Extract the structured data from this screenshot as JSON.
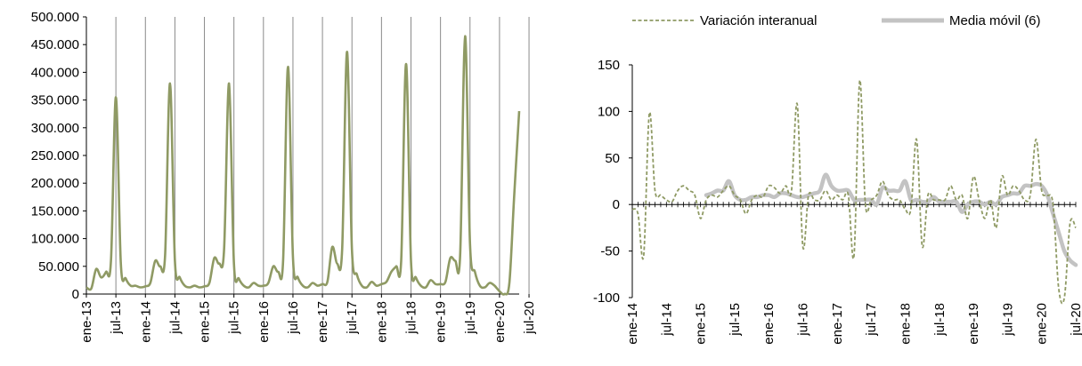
{
  "chart_data": [
    {
      "type": "line",
      "title": "",
      "xlabel": "",
      "ylabel": "",
      "ylim": [
        0,
        500000
      ],
      "yticks": [
        0,
        50000,
        100000,
        150000,
        200000,
        250000,
        300000,
        350000,
        400000,
        450000,
        500000
      ],
      "ytick_labels": [
        "0",
        "50.000",
        "100.000",
        "150.000",
        "200.000",
        "250.000",
        "300.000",
        "350.000",
        "400.000",
        "450.000",
        "500.000"
      ],
      "xtick_labels": [
        "ene-13",
        "jul-13",
        "ene-14",
        "jul-14",
        "ene-15",
        "jul-15",
        "ene-16",
        "jul-16",
        "ene-17",
        "jul-17",
        "ene-18",
        "jul-18",
        "ene-19",
        "jul-19",
        "ene-20",
        "jul-20"
      ],
      "x_start": "ene-13",
      "x_end": "ago-20",
      "grid": "vertical lines at each ene/jul",
      "series": [
        {
          "name": "",
          "color": "#8f9a64",
          "values": [
            12000,
            10000,
            45000,
            30000,
            40000,
            60000,
            355000,
            55000,
            28000,
            15000,
            15000,
            12000,
            14000,
            20000,
            60000,
            50000,
            70000,
            380000,
            60000,
            30000,
            15000,
            12000,
            15000,
            12000,
            14000,
            20000,
            65000,
            55000,
            80000,
            380000,
            55000,
            28000,
            15000,
            12000,
            20000,
            15000,
            15000,
            20000,
            50000,
            40000,
            60000,
            410000,
            65000,
            30000,
            15000,
            12000,
            20000,
            15000,
            18000,
            22000,
            85000,
            55000,
            80000,
            437000,
            80000,
            35000,
            15000,
            12000,
            22000,
            15000,
            18000,
            22000,
            40000,
            50000,
            60000,
            415000,
            60000,
            30000,
            15000,
            12000,
            25000,
            18000,
            18000,
            22000,
            65000,
            60000,
            70000,
            465000,
            90000,
            40000,
            15000,
            12000,
            20000,
            15000,
            5000,
            0,
            20000,
            180000,
            330000
          ]
        }
      ]
    },
    {
      "type": "line",
      "title": "",
      "xlabel": "",
      "ylabel": "",
      "ylim": [
        -100,
        150
      ],
      "yticks": [
        -100,
        -50,
        0,
        50,
        100,
        150
      ],
      "ytick_labels": [
        "-100",
        "-50",
        "0",
        "50",
        "100",
        "150"
      ],
      "xtick_labels": [
        "ene-14",
        "jul-14",
        "ene-15",
        "jul-15",
        "ene-16",
        "jul-16",
        "ene-17",
        "jul-17",
        "ene-18",
        "jul-18",
        "ene-19",
        "jul-19",
        "ene-20",
        "jul-20"
      ],
      "x_start": "ene-14",
      "x_end": "ago-20",
      "legend_position": "top",
      "series": [
        {
          "name": "Variación interanual",
          "color": "#8f9a64",
          "style": "dashed",
          "values": [
            -5,
            -10,
            -55,
            98,
            15,
            10,
            5,
            3,
            15,
            20,
            15,
            10,
            -15,
            5,
            10,
            8,
            15,
            20,
            10,
            5,
            -10,
            5,
            10,
            8,
            20,
            18,
            12,
            20,
            15,
            108,
            -45,
            10,
            5,
            5,
            15,
            5,
            10,
            5,
            10,
            -55,
            133,
            0,
            5,
            10,
            25,
            10,
            5,
            5,
            -5,
            -5,
            70,
            -45,
            10,
            5,
            5,
            5,
            20,
            5,
            10,
            -15,
            30,
            5,
            -15,
            5,
            -25,
            30,
            10,
            20,
            15,
            5,
            10,
            70,
            15,
            10,
            0,
            -90,
            -100,
            -20,
            -25
          ]
        },
        {
          "name": "Media móvil (6)",
          "color": "#c3c3c3",
          "style": "solid",
          "values": [
            10,
            12,
            15,
            15,
            25,
            10,
            5,
            5,
            8,
            8,
            10,
            10,
            8,
            12,
            12,
            10,
            8,
            8,
            10,
            12,
            15,
            32,
            20,
            15,
            15,
            15,
            5,
            5,
            5,
            5,
            0,
            18,
            15,
            15,
            15,
            25,
            5,
            5,
            3,
            3,
            8,
            3,
            3,
            3,
            3,
            -8,
            0,
            3,
            3,
            0,
            3,
            0,
            8,
            10,
            12,
            12,
            20,
            20,
            22,
            20,
            10,
            -10,
            -30,
            -50,
            -60,
            -65
          ]
        }
      ]
    }
  ]
}
